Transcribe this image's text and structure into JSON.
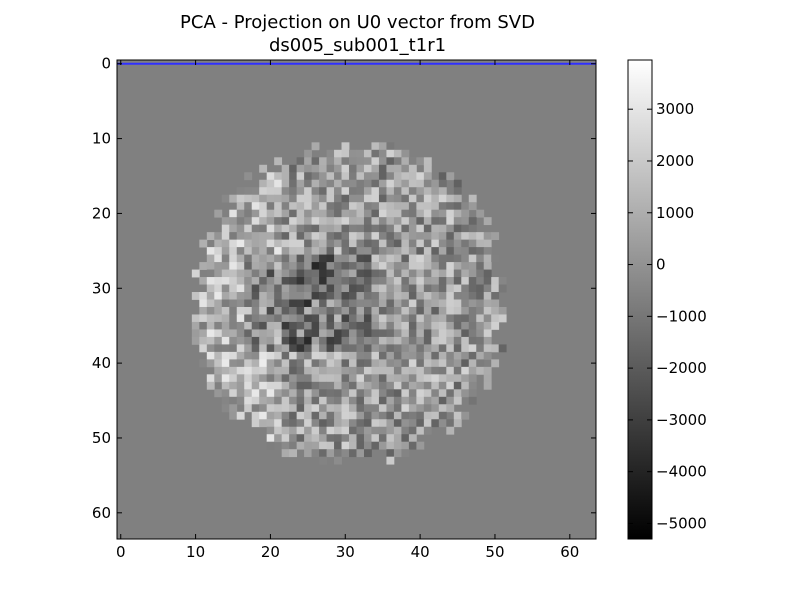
{
  "chart_data": {
    "type": "heatmap",
    "title": "PCA - Projection on U0 vector from SVD",
    "subtitle": "ds005_sub001_t1r1",
    "xlabel": "",
    "ylabel": "",
    "xlim": [
      -0.5,
      63.5
    ],
    "ylim": [
      63.5,
      -0.5
    ],
    "x_ticks": [
      0,
      10,
      20,
      30,
      40,
      50,
      60
    ],
    "y_ticks": [
      0,
      10,
      20,
      30,
      40,
      50,
      60
    ],
    "colormap": "gray",
    "colorbar": {
      "vmin": -5300,
      "vmax": 3950,
      "ticks": [
        3000,
        2000,
        1000,
        0,
        -1000,
        -2000,
        -3000,
        -4000,
        -5000
      ],
      "tick_labels": [
        "3000",
        "2000",
        "1000",
        "0",
        "−1000",
        "−2000",
        "−3000",
        "−4000",
        "−5000"
      ]
    },
    "background_value": -650,
    "brain_region": {
      "center_row": 32,
      "center_col": 30.5,
      "row_radius": 22,
      "col_radius": 21.5,
      "value_range": [
        -5300,
        3950
      ]
    },
    "line_overlay": {
      "row": 0,
      "col_range": [
        -0.5,
        63.5
      ],
      "color": "#3030ff"
    }
  }
}
